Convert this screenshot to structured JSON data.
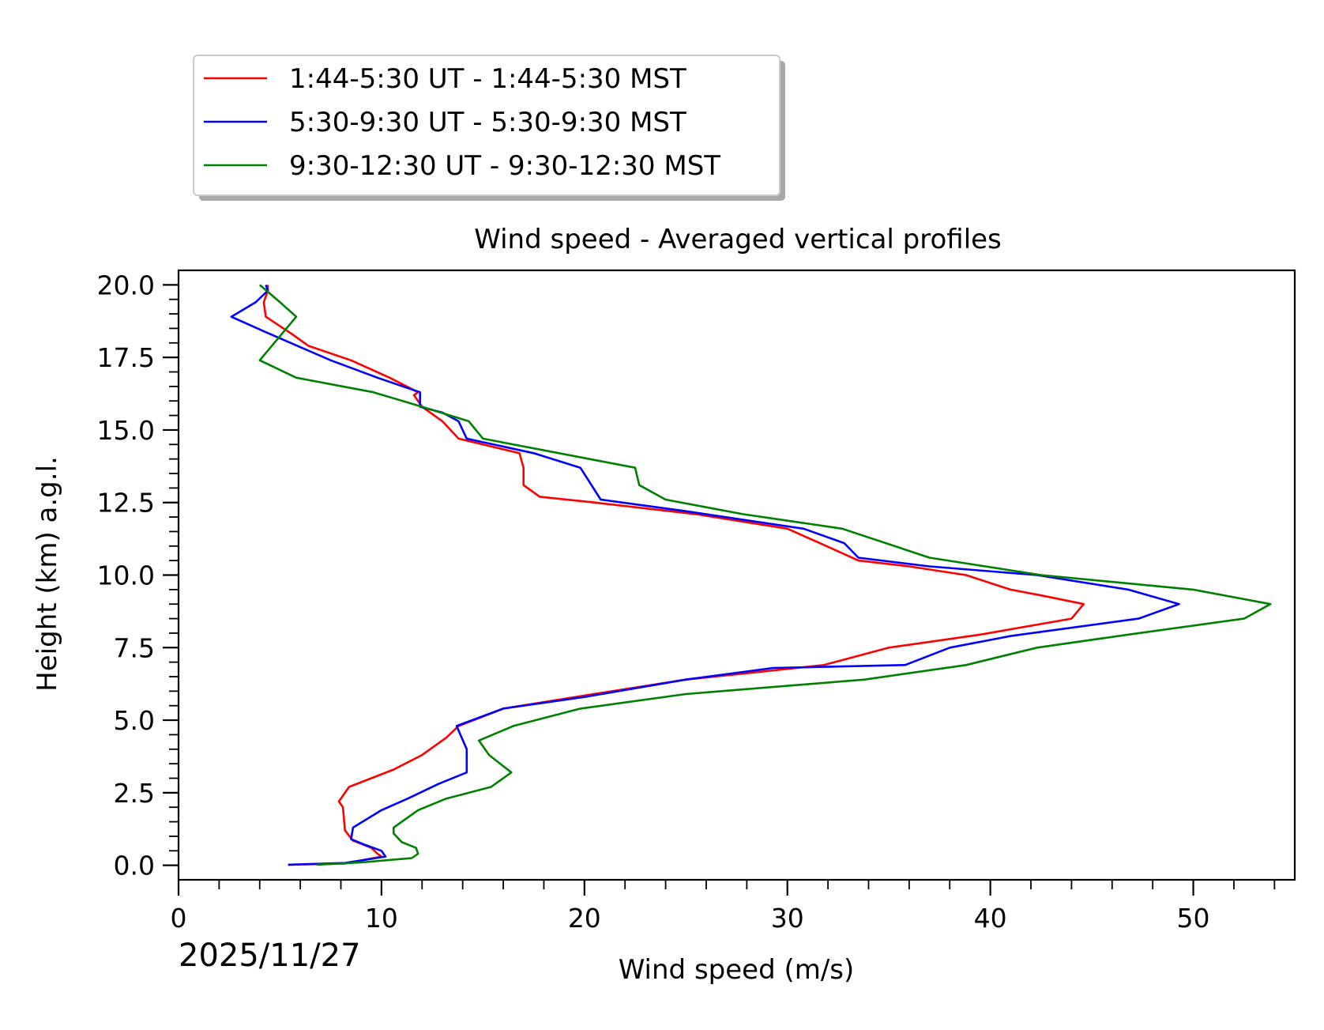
{
  "chart_data": {
    "type": "line",
    "orientation": "vertical-profile",
    "title": "Wind speed - Averaged vertical profiles",
    "xlabel": "Wind speed (m/s)",
    "ylabel": "Height (km) a.g.l.",
    "date_label": "2025/11/27",
    "xlim": [
      0,
      55
    ],
    "ylim": [
      -0.5,
      20.5
    ],
    "x_ticks": [
      0,
      10,
      20,
      30,
      40,
      50
    ],
    "x_tick_labels": [
      "0",
      "10",
      "20",
      "30",
      "40",
      "50"
    ],
    "y_ticks": [
      0,
      2.5,
      5,
      7.5,
      10,
      12.5,
      15,
      17.5,
      20
    ],
    "y_tick_labels": [
      "0.0",
      "2.5",
      "5.0",
      "7.5",
      "10.0",
      "12.5",
      "15.0",
      "17.5",
      "20.0"
    ],
    "legend_position": "above-left",
    "series": [
      {
        "name": "1:44-5:30 UT - 1:44-5:30 MST",
        "color": "#ff0000",
        "points": [
          [
            5.4,
            0.02
          ],
          [
            8.2,
            0.06
          ],
          [
            10.0,
            0.3
          ],
          [
            9.8,
            0.4
          ],
          [
            9.5,
            0.6
          ],
          [
            8.6,
            0.85
          ],
          [
            8.2,
            1.2
          ],
          [
            8.1,
            2.0
          ],
          [
            7.9,
            2.2
          ],
          [
            8.4,
            2.7
          ],
          [
            10.6,
            3.3
          ],
          [
            12.0,
            3.8
          ],
          [
            13.2,
            4.4
          ],
          [
            13.8,
            4.8
          ],
          [
            16.0,
            5.4
          ],
          [
            20.0,
            5.85
          ],
          [
            25.0,
            6.4
          ],
          [
            31.8,
            6.9
          ],
          [
            35.0,
            7.5
          ],
          [
            39.5,
            7.95
          ],
          [
            44.0,
            8.5
          ],
          [
            44.6,
            9.0
          ],
          [
            42.5,
            9.3
          ],
          [
            41.0,
            9.5
          ],
          [
            38.8,
            10.0
          ],
          [
            36.0,
            10.3
          ],
          [
            33.5,
            10.5
          ],
          [
            31.6,
            11.1
          ],
          [
            30.0,
            11.6
          ],
          [
            25.5,
            12.1
          ],
          [
            20.5,
            12.5
          ],
          [
            17.8,
            12.7
          ],
          [
            17.0,
            13.1
          ],
          [
            17.0,
            13.7
          ],
          [
            16.8,
            14.2
          ],
          [
            13.8,
            14.7
          ],
          [
            13.0,
            15.3
          ],
          [
            12.0,
            15.8
          ],
          [
            11.6,
            16.2
          ],
          [
            11.8,
            16.3
          ],
          [
            10.4,
            16.8
          ],
          [
            8.5,
            17.4
          ],
          [
            6.4,
            17.9
          ],
          [
            5.6,
            18.3
          ],
          [
            4.3,
            18.9
          ],
          [
            4.2,
            19.4
          ],
          [
            4.4,
            19.8
          ],
          [
            4.4,
            20.0
          ]
        ]
      },
      {
        "name": "5:30-9:30 UT - 5:30-9:30 MST",
        "color": "#0000ff",
        "points": [
          [
            5.4,
            0.02
          ],
          [
            8.2,
            0.08
          ],
          [
            10.2,
            0.3
          ],
          [
            10.0,
            0.5
          ],
          [
            9.2,
            0.7
          ],
          [
            8.5,
            0.9
          ],
          [
            8.6,
            1.3
          ],
          [
            10.0,
            1.9
          ],
          [
            11.3,
            2.3
          ],
          [
            12.8,
            2.8
          ],
          [
            14.2,
            3.2
          ],
          [
            14.2,
            4.0
          ],
          [
            13.7,
            4.8
          ],
          [
            16.0,
            5.4
          ],
          [
            20.0,
            5.8
          ],
          [
            25.0,
            6.4
          ],
          [
            29.3,
            6.8
          ],
          [
            35.8,
            6.9
          ],
          [
            38.0,
            7.5
          ],
          [
            41.0,
            7.9
          ],
          [
            47.3,
            8.5
          ],
          [
            49.3,
            9.0
          ],
          [
            46.8,
            9.5
          ],
          [
            42.3,
            10.0
          ],
          [
            37.0,
            10.3
          ],
          [
            33.5,
            10.6
          ],
          [
            32.8,
            11.1
          ],
          [
            30.8,
            11.6
          ],
          [
            25.0,
            12.2
          ],
          [
            20.8,
            12.6
          ],
          [
            19.8,
            13.7
          ],
          [
            17.5,
            14.2
          ],
          [
            14.2,
            14.7
          ],
          [
            13.8,
            15.3
          ],
          [
            13.0,
            15.6
          ],
          [
            11.9,
            15.8
          ],
          [
            11.9,
            16.3
          ],
          [
            9.8,
            16.8
          ],
          [
            7.5,
            17.4
          ],
          [
            4.2,
            18.4
          ],
          [
            2.6,
            18.9
          ],
          [
            3.8,
            19.4
          ],
          [
            4.4,
            19.8
          ],
          [
            4.3,
            20.0
          ]
        ]
      },
      {
        "name": "9:30-12:30 UT - 9:30-12:30 MST",
        "color": "#008000",
        "points": [
          [
            6.8,
            0.02
          ],
          [
            9.0,
            0.1
          ],
          [
            11.5,
            0.25
          ],
          [
            11.8,
            0.4
          ],
          [
            11.7,
            0.6
          ],
          [
            11.0,
            0.8
          ],
          [
            10.6,
            1.1
          ],
          [
            10.6,
            1.3
          ],
          [
            11.8,
            1.9
          ],
          [
            13.2,
            2.3
          ],
          [
            15.4,
            2.7
          ],
          [
            16.4,
            3.2
          ],
          [
            15.3,
            3.8
          ],
          [
            14.8,
            4.3
          ],
          [
            16.5,
            4.8
          ],
          [
            19.8,
            5.4
          ],
          [
            25.0,
            5.9
          ],
          [
            33.8,
            6.4
          ],
          [
            38.8,
            6.9
          ],
          [
            42.3,
            7.5
          ],
          [
            46.8,
            7.95
          ],
          [
            52.5,
            8.5
          ],
          [
            53.8,
            9.0
          ],
          [
            50.0,
            9.5
          ],
          [
            42.5,
            10.0
          ],
          [
            37.0,
            10.6
          ],
          [
            32.7,
            11.6
          ],
          [
            27.8,
            12.1
          ],
          [
            24.0,
            12.6
          ],
          [
            22.7,
            13.1
          ],
          [
            22.5,
            13.7
          ],
          [
            15.0,
            14.7
          ],
          [
            14.3,
            15.3
          ],
          [
            12.0,
            15.8
          ],
          [
            9.6,
            16.3
          ],
          [
            5.8,
            16.8
          ],
          [
            4.0,
            17.4
          ],
          [
            5.8,
            18.9
          ],
          [
            5.0,
            19.4
          ],
          [
            4.0,
            20.0
          ]
        ]
      }
    ]
  }
}
